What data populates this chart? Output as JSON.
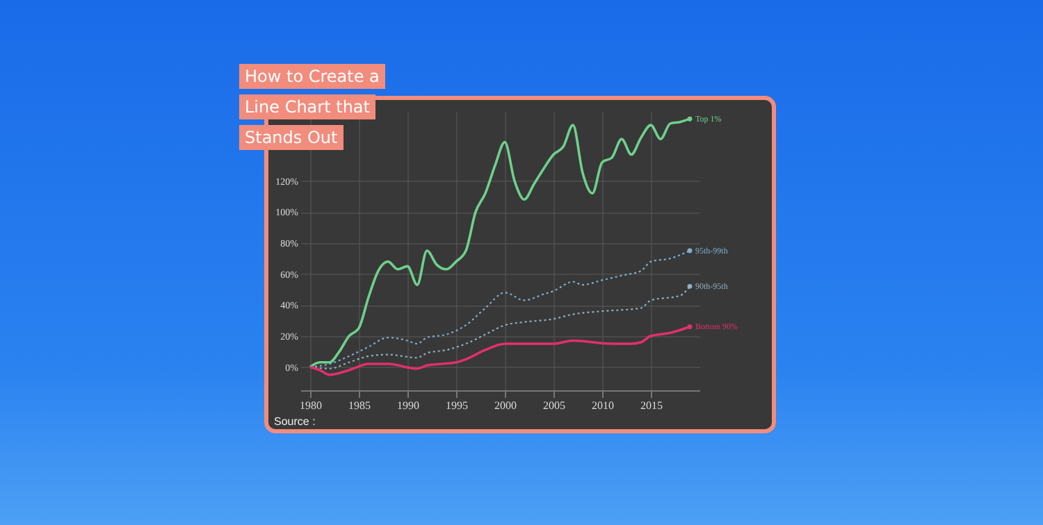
{
  "chart_data": {
    "type": "line",
    "title": "How to Create a Line Chart that Stands Out",
    "annotations": [
      "Source :"
    ],
    "xlim": [
      1979,
      2020
    ],
    "xticks": [
      1980,
      1985,
      1990,
      1995,
      2000,
      2005,
      2010,
      2015
    ],
    "ylim": [
      -15,
      165
    ],
    "yticks": [
      {
        "value": 0,
        "label": "0%"
      },
      {
        "value": 20,
        "label": "20%"
      },
      {
        "value": 40,
        "label": "40%"
      },
      {
        "value": 60,
        "label": "60%"
      },
      {
        "value": 80,
        "label": "80%"
      },
      {
        "value": 100,
        "label": "100%"
      },
      {
        "value": 120,
        "label": "120%"
      }
    ],
    "grid": true,
    "legend": false,
    "series": [
      {
        "name": "Top 1%",
        "color": "#6fd08c",
        "line_style": "solid",
        "x": [
          1980,
          1981,
          1982,
          1983,
          1984,
          1985,
          1986,
          1987,
          1988,
          1989,
          1990,
          1991,
          1992,
          1993,
          1994,
          1995,
          1996,
          1997,
          1998,
          1999,
          2000,
          2001,
          2002,
          2003,
          2004,
          2005,
          2006,
          2007,
          2008,
          2009,
          2010,
          2011,
          2012,
          2013,
          2014,
          2015,
          2016,
          2017,
          2018,
          2019
        ],
        "values": [
          0,
          3,
          3,
          10,
          20,
          25,
          45,
          62,
          68,
          63,
          65,
          53,
          75,
          66,
          63,
          68,
          75,
          100,
          112,
          130,
          145,
          120,
          108,
          118,
          128,
          137,
          142,
          156,
          125,
          112,
          132,
          135,
          147,
          137,
          148,
          156,
          147,
          157,
          158,
          160
        ]
      },
      {
        "name": "95th-99th",
        "color": "#7eaed0",
        "line_style": "dotted",
        "x": [
          1980,
          1982,
          1984,
          1986,
          1988,
          1990,
          1991,
          1992,
          1994,
          1996,
          1998,
          2000,
          2002,
          2004,
          2005,
          2007,
          2008,
          2010,
          2012,
          2014,
          2015,
          2017,
          2019
        ],
        "values": [
          0,
          2,
          7,
          13,
          19,
          17,
          15,
          19,
          21,
          27,
          38,
          48,
          43,
          47,
          49,
          55,
          53,
          56,
          59,
          62,
          68,
          70,
          75
        ]
      },
      {
        "name": "90th-95th",
        "color": "#8fb0c0",
        "line_style": "dotted",
        "x": [
          1980,
          1982,
          1984,
          1986,
          1988,
          1991,
          1992,
          1994,
          1996,
          1998,
          2000,
          2002,
          2005,
          2007,
          2010,
          2014,
          2015,
          2018,
          2019
        ],
        "values": [
          0,
          -1,
          3,
          7,
          8,
          6,
          9,
          11,
          15,
          21,
          27,
          29,
          31,
          34,
          36,
          38,
          43,
          46,
          52
        ]
      },
      {
        "name": "Bottom 90%",
        "color": "#e0306a",
        "line_style": "solid",
        "x": [
          1980,
          1981,
          1982,
          1984,
          1986,
          1988,
          1991,
          1992,
          1995,
          1996,
          1998,
          2000,
          2005,
          2007,
          2011,
          2013,
          2014,
          2015,
          2017,
          2019
        ],
        "values": [
          0,
          -2,
          -5,
          -2,
          2,
          2,
          -1,
          1,
          3,
          5,
          11,
          15,
          15,
          17,
          15,
          15,
          16,
          20,
          22,
          26
        ]
      }
    ]
  }
}
